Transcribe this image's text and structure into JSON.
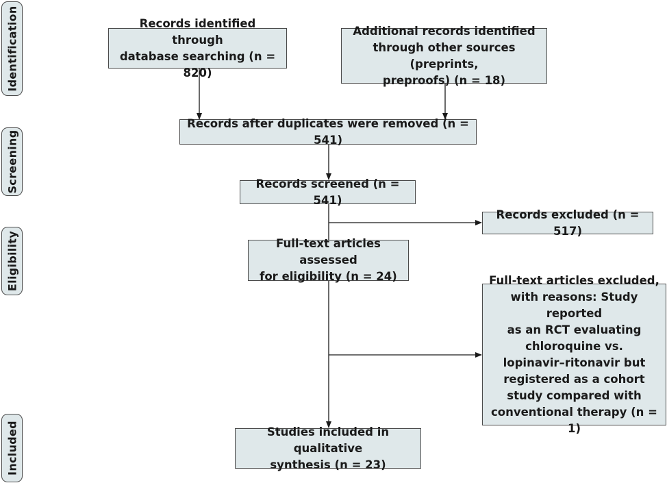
{
  "stages": [
    {
      "id": "identification",
      "label": "Identification"
    },
    {
      "id": "screening",
      "label": "Screening"
    },
    {
      "id": "eligibility",
      "label": "Eligibility"
    },
    {
      "id": "included",
      "label": "Included"
    }
  ],
  "boxes": {
    "database_records": {
      "line1": "Records identified through",
      "line2": "database searching (n = 820)"
    },
    "other_records": {
      "line1": "Additional records identified",
      "line2": "through other sources (preprints,",
      "line3": "preproofs) (n = 18)"
    },
    "after_duplicates": {
      "line1": "Records after duplicates were removed (n = 541)"
    },
    "screened": {
      "line1": "Records screened (n = 541)"
    },
    "excluded": {
      "line1": "Records excluded (n = 517)"
    },
    "fulltext_assessed": {
      "line1": "Full-text articles assessed",
      "line2": "for eligibility (n = 24)"
    },
    "fulltext_excluded": {
      "line1": "Full-text articles excluded,",
      "line2": "with reasons: Study reported",
      "line3": "as an RCT evaluating",
      "line4": "chloroquine vs.",
      "line5": "lopinavir–ritonavir but",
      "line6": "registered as a cohort",
      "line7": "study compared with",
      "line8": "conventional therapy (n = 1)"
    },
    "included": {
      "line1": "Studies included in qualitative",
      "line2": "synthesis (n = 23)"
    }
  },
  "colors": {
    "box_fill": "#dfe8ea",
    "border": "#4a4a4a",
    "line": "#1a1a1a"
  }
}
